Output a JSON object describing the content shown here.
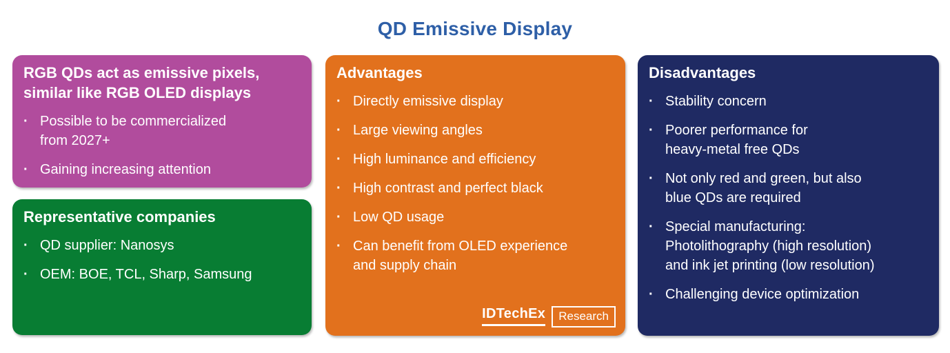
{
  "title": "QD Emissive Display",
  "bullet_char": "·",
  "colors": {
    "title_blue": "#2e5fa7",
    "purple_box": "#b14c9d",
    "green_box": "#087d33",
    "orange_box": "#e2711d",
    "navy_box": "#1f2a63",
    "text": "#ffffff"
  },
  "boxes": {
    "overview": {
      "heading": "RGB QDs act as emissive pixels,\nsimilar like RGB OLED displays",
      "items": [
        "Possible to be commercialized\nfrom 2027+",
        "Gaining increasing attention"
      ]
    },
    "companies": {
      "heading": "Representative companies",
      "items": [
        "QD supplier: Nanosys",
        "OEM: BOE, TCL, Sharp, Samsung"
      ]
    },
    "advantages": {
      "heading": "Advantages",
      "items": [
        "Directly emissive display",
        "Large viewing angles",
        "High luminance and efficiency",
        "High contrast and perfect black",
        "Low QD usage",
        "Can benefit from OLED experience\nand supply chain"
      ]
    },
    "disadvantages": {
      "heading": "Disadvantages",
      "items": [
        "Stability concern",
        "Poorer performance for\nheavy-metal free QDs",
        "Not only red and green, but also\nblue QDs are required",
        "Special manufacturing:\nPhotolithography (high resolution)\nand ink jet printing (low resolution)",
        "Challenging device optimization"
      ]
    }
  },
  "logo": {
    "brand": "IDTechEx",
    "label": "Research"
  }
}
